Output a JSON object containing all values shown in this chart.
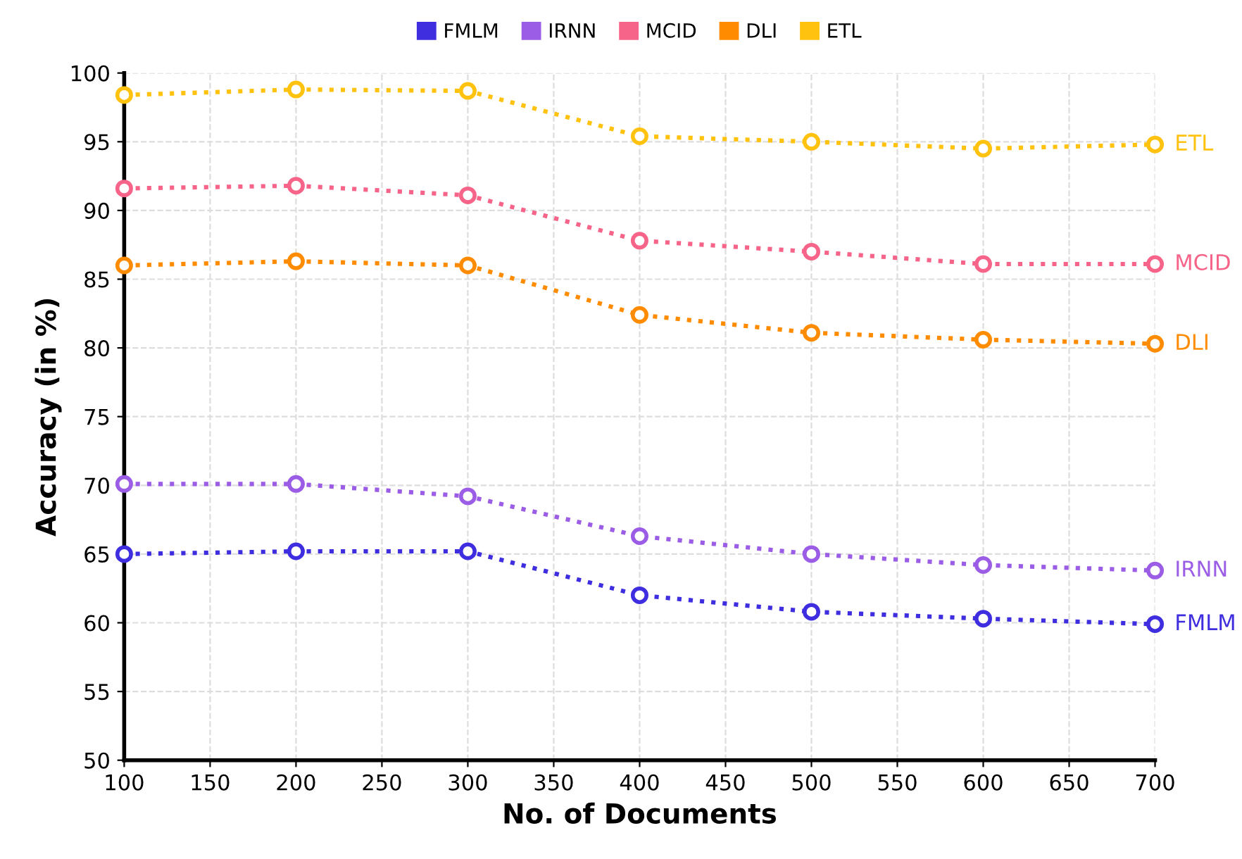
{
  "chart_data": {
    "type": "line",
    "xlabel": "No. of Documents",
    "ylabel": "Accuracy (in %)",
    "x": [
      100,
      200,
      300,
      400,
      500,
      600,
      700
    ],
    "xlim": [
      100,
      700
    ],
    "xticks": [
      100,
      150,
      200,
      250,
      300,
      350,
      400,
      450,
      500,
      550,
      600,
      650,
      700
    ],
    "ylim": [
      50,
      100
    ],
    "yticks": [
      50,
      55,
      60,
      65,
      70,
      75,
      80,
      85,
      90,
      95,
      100
    ],
    "grid": true,
    "legend": "top",
    "marker": "circle",
    "line_style": "dotted",
    "series": [
      {
        "name": "FMLM",
        "color": "#3f2de0",
        "values": [
          65.0,
          65.2,
          65.2,
          62.0,
          60.8,
          60.3,
          59.9
        ]
      },
      {
        "name": "IRNN",
        "color": "#9b5de5",
        "values": [
          70.1,
          70.1,
          69.2,
          66.3,
          65.0,
          64.2,
          63.8
        ]
      },
      {
        "name": "MCID",
        "color": "#f7648a",
        "values": [
          91.6,
          91.8,
          91.1,
          87.8,
          87.0,
          86.1,
          86.1
        ]
      },
      {
        "name": "DLI",
        "color": "#ff8c00",
        "values": [
          86.0,
          86.3,
          86.0,
          82.4,
          81.1,
          80.6,
          80.3
        ]
      },
      {
        "name": "ETL",
        "color": "#ffc20e",
        "values": [
          98.4,
          98.8,
          98.7,
          95.4,
          95.0,
          94.5,
          94.8
        ]
      }
    ]
  }
}
